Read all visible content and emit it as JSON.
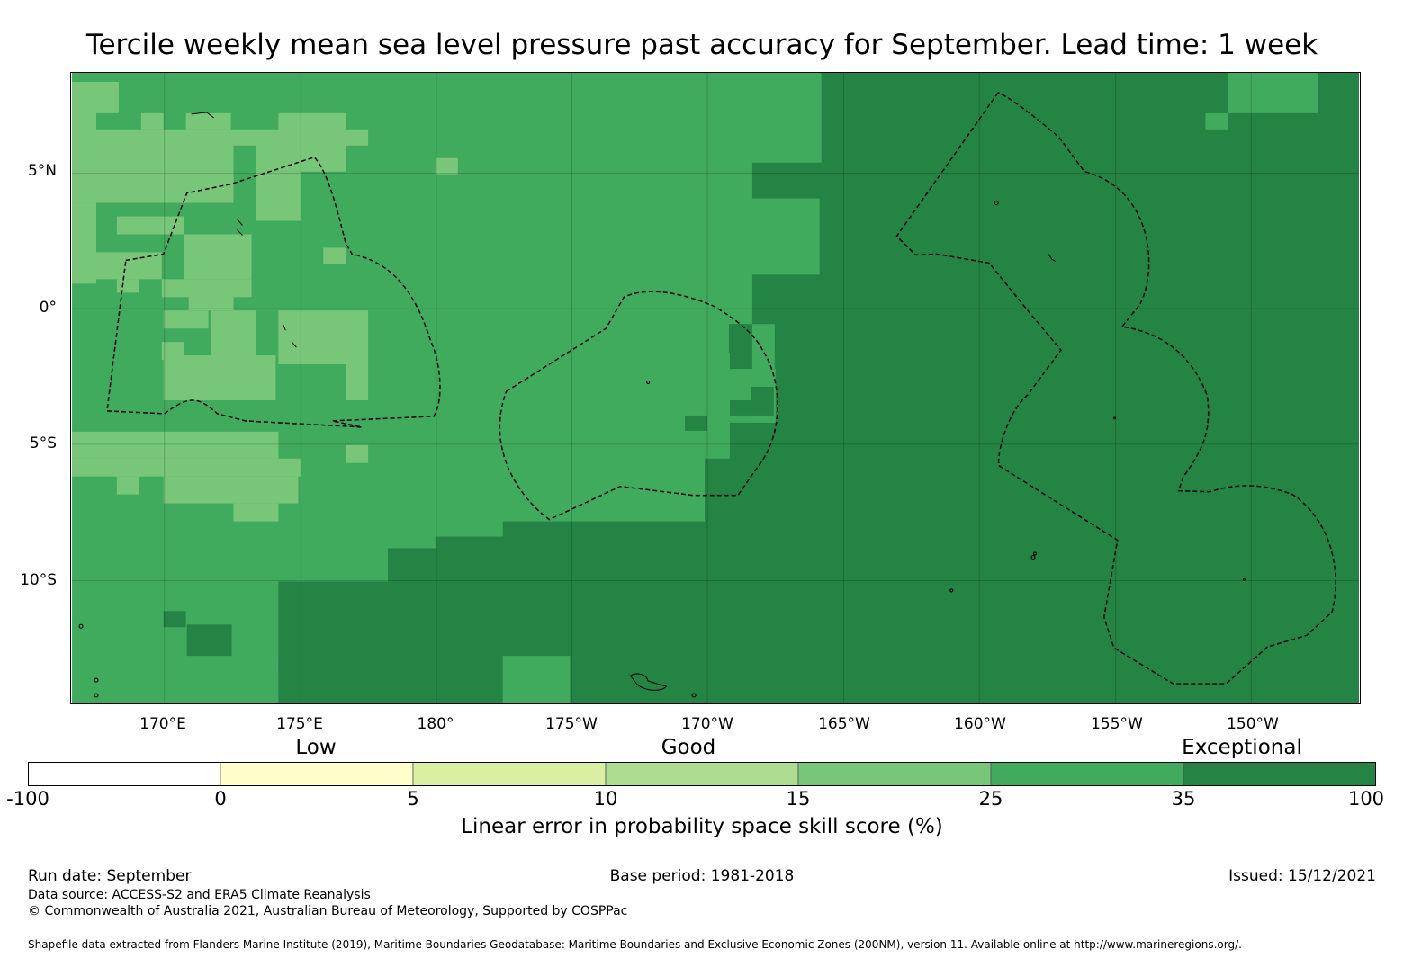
{
  "title": "Tercile weekly mean sea level pressure past accuracy for September. Lead time: 1 week",
  "map": {
    "lat_labels": [
      "5°N",
      "0°",
      "5°S",
      "10°S"
    ],
    "lon_labels": [
      "170°E",
      "175°E",
      "180°",
      "175°W",
      "170°W",
      "165°W",
      "160°W",
      "155°W",
      "150°W"
    ],
    "category_labels": [
      "Low",
      "Good",
      "Exceptional"
    ]
  },
  "colorbar": {
    "label": "Linear error in probability space skill score (%)",
    "ticks": [
      "-100",
      "0",
      "5",
      "10",
      "15",
      "25",
      "35",
      "100"
    ],
    "bins": [
      {
        "from": "-100",
        "to": "0",
        "color": "#ffffff"
      },
      {
        "from": "0",
        "to": "5",
        "color": "#ffffcc"
      },
      {
        "from": "5",
        "to": "10",
        "color": "#d9f0a3"
      },
      {
        "from": "10",
        "to": "15",
        "color": "#addd8e"
      },
      {
        "from": "15",
        "to": "25",
        "color": "#78c679"
      },
      {
        "from": "25",
        "to": "35",
        "color": "#41ab5d"
      },
      {
        "from": "35",
        "to": "100",
        "color": "#238443"
      }
    ]
  },
  "footer": {
    "run_date": "Run date: September",
    "base_period": "Base period: 1981-2018",
    "issued": "Issued: 15/12/2021",
    "data_source": "Data source: ACCESS-S2 and ERA5 Climate Reanalysis",
    "copyright": "© Commonwealth of Australia 2021, Australian Bureau of Meteorology, Supported by COSPPac",
    "shapefile": "Shapefile data extracted from Flanders Marine Institute (2019), Maritime Boundaries Geodatabase: Maritime Boundaries and Exclusive Economic Zones (200NM), version 11. Available online at http://www.marineregions.org/."
  }
}
